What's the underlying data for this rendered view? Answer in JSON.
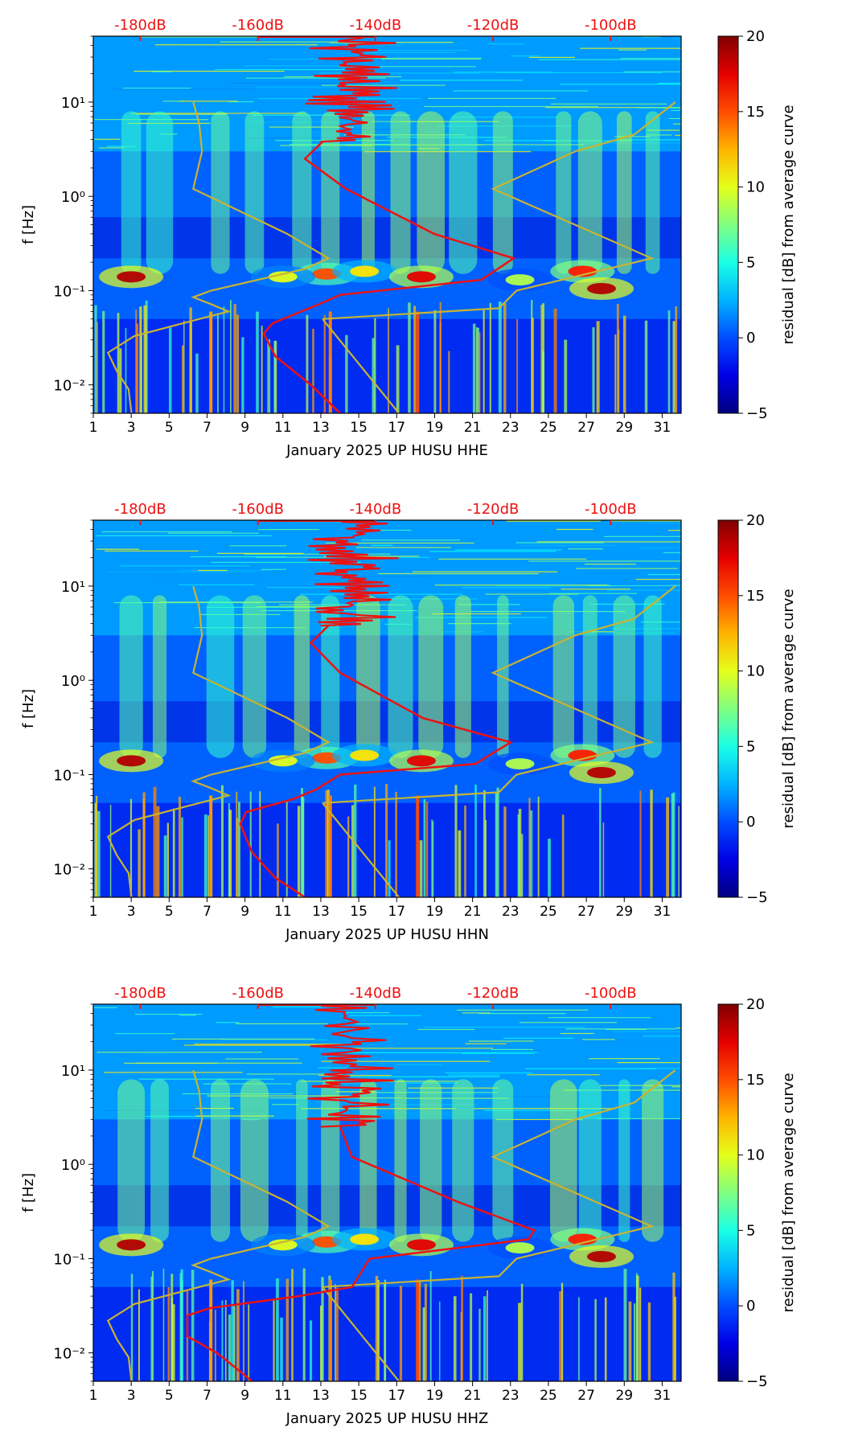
{
  "chart_data": [
    {
      "type": "heatmap",
      "title": "",
      "xlabel": "January 2025 UP HUSU  HHE",
      "ylabel": "f [Hz]",
      "x_ticks": [
        "1",
        "3",
        "5",
        "7",
        "9",
        "11",
        "13",
        "15",
        "17",
        "19",
        "21",
        "23",
        "25",
        "27",
        "29",
        "31"
      ],
      "x_range": [
        1,
        32
      ],
      "y_ticks": [
        "10⁻²",
        "10⁻¹",
        "10⁰",
        "10¹"
      ],
      "y_range_hz": [
        0.005,
        50
      ],
      "top_axis_ticks": [
        "-180dB",
        "-160dB",
        "-140dB",
        "-120dB",
        "-100dB"
      ],
      "top_axis_range_db": [
        -188,
        -88
      ],
      "colorbar": {
        "label": "residual [dB] from average curve",
        "ticks": [
          "20",
          "15",
          "10",
          "5",
          "0",
          "−5"
        ],
        "range": [
          -5,
          20
        ],
        "colormap": "jet"
      },
      "series": [
        {
          "name": "noise model (yellow)",
          "color": "#c8b432",
          "points_db_hz": [
            [
              -181.5,
              0.005
            ],
            [
              -182,
              0.009
            ],
            [
              -184,
              0.014
            ],
            [
              -185.5,
              0.022
            ],
            [
              -181,
              0.033
            ],
            [
              -170,
              0.05
            ],
            [
              -165,
              0.06
            ],
            [
              -168,
              0.072
            ],
            [
              -171,
              0.085
            ],
            [
              -168,
              0.1
            ],
            [
              -152,
              0.17
            ],
            [
              -148,
              0.22
            ],
            [
              -155,
              0.4
            ],
            [
              -171,
              1.2
            ],
            [
              -169.5,
              3
            ],
            [
              -170,
              6
            ],
            [
              -171,
              10
            ]
          ]
        },
        {
          "name": "noise model (yellow, high)",
          "color": "#c8b432",
          "points_db_hz": [
            [
              -149,
              0.05
            ],
            [
              -119,
              0.065
            ],
            [
              -116,
              0.1
            ],
            [
              -93,
              0.22
            ],
            [
              -120,
              1.2
            ],
            [
              -106,
              3
            ],
            [
              -96,
              4.5
            ],
            [
              -89,
              10
            ]
          ]
        },
        {
          "name": "noise model (yellow, slope)",
          "color": "#c8b432",
          "points_db_hz": [
            [
              -149,
              0.05
            ],
            [
              -136,
              0.005
            ]
          ]
        },
        {
          "name": "median PSD (red)",
          "color": "#ee1111",
          "points_db_hz": [
            [
              -146,
              0.005
            ],
            [
              -151,
              0.01
            ],
            [
              -157,
              0.02
            ],
            [
              -159,
              0.035
            ],
            [
              -157.5,
              0.045
            ],
            [
              -150,
              0.07
            ],
            [
              -146,
              0.09
            ],
            [
              -122,
              0.13
            ],
            [
              -116.5,
              0.22
            ],
            [
              -130,
              0.4
            ],
            [
              -145,
              1.2
            ],
            [
              -152,
              2.5
            ],
            [
              -149,
              3.8
            ]
          ]
        }
      ]
    },
    {
      "type": "heatmap",
      "title": "",
      "xlabel": "January 2025 UP HUSU  HHN",
      "ylabel": "f [Hz]",
      "x_ticks": [
        "1",
        "3",
        "5",
        "7",
        "9",
        "11",
        "13",
        "15",
        "17",
        "19",
        "21",
        "23",
        "25",
        "27",
        "29",
        "31"
      ],
      "x_range": [
        1,
        32
      ],
      "y_ticks": [
        "10⁻²",
        "10⁻¹",
        "10⁰",
        "10¹"
      ],
      "y_range_hz": [
        0.005,
        50
      ],
      "top_axis_ticks": [
        "-180dB",
        "-160dB",
        "-140dB",
        "-120dB",
        "-100dB"
      ],
      "top_axis_range_db": [
        -188,
        -88
      ],
      "colorbar": {
        "label": "residual [dB] from average curve",
        "ticks": [
          "20",
          "15",
          "10",
          "5",
          "0",
          "−5"
        ],
        "range": [
          -5,
          20
        ],
        "colormap": "jet"
      },
      "series": [
        {
          "name": "noise model (yellow)",
          "color": "#c8b432",
          "points_db_hz": [
            [
              -181.5,
              0.005
            ],
            [
              -182,
              0.009
            ],
            [
              -184,
              0.014
            ],
            [
              -185.5,
              0.022
            ],
            [
              -181,
              0.033
            ],
            [
              -170,
              0.05
            ],
            [
              -165,
              0.06
            ],
            [
              -168,
              0.072
            ],
            [
              -171,
              0.085
            ],
            [
              -168,
              0.1
            ],
            [
              -152,
              0.17
            ],
            [
              -148,
              0.22
            ],
            [
              -155,
              0.4
            ],
            [
              -171,
              1.2
            ],
            [
              -169.5,
              3
            ],
            [
              -170,
              6
            ],
            [
              -171,
              10
            ]
          ]
        },
        {
          "name": "noise model (yellow, high)",
          "color": "#c8b432",
          "points_db_hz": [
            [
              -149,
              0.05
            ],
            [
              -119,
              0.065
            ],
            [
              -116,
              0.1
            ],
            [
              -93,
              0.22
            ],
            [
              -120,
              1.2
            ],
            [
              -106,
              3
            ],
            [
              -96,
              4.5
            ],
            [
              -89,
              10
            ]
          ]
        },
        {
          "name": "noise model (yellow, slope)",
          "color": "#c8b432",
          "points_db_hz": [
            [
              -149,
              0.05
            ],
            [
              -136,
              0.005
            ]
          ]
        },
        {
          "name": "median PSD (red)",
          "color": "#ee1111",
          "points_db_hz": [
            [
              -152,
              0.005
            ],
            [
              -157,
              0.008
            ],
            [
              -161,
              0.015
            ],
            [
              -163,
              0.03
            ],
            [
              -162,
              0.04
            ],
            [
              -154,
              0.055
            ],
            [
              -150,
              0.07
            ],
            [
              -146,
              0.1
            ],
            [
              -123,
              0.13
            ],
            [
              -117,
              0.22
            ],
            [
              -132,
              0.4
            ],
            [
              -146,
              1.2
            ],
            [
              -151,
              2.5
            ],
            [
              -148,
              3.8
            ]
          ]
        }
      ]
    },
    {
      "type": "heatmap",
      "title": "",
      "xlabel": "January 2025 UP HUSU  HHZ",
      "ylabel": "f [Hz]",
      "x_ticks": [
        "1",
        "3",
        "5",
        "7",
        "9",
        "11",
        "13",
        "15",
        "17",
        "19",
        "21",
        "23",
        "25",
        "27",
        "29",
        "31"
      ],
      "x_range": [
        1,
        32
      ],
      "y_ticks": [
        "10⁻²",
        "10⁻¹",
        "10⁰",
        "10¹"
      ],
      "y_range_hz": [
        0.005,
        50
      ],
      "top_axis_ticks": [
        "-180dB",
        "-160dB",
        "-140dB",
        "-120dB",
        "-100dB"
      ],
      "top_axis_range_db": [
        -188,
        -88
      ],
      "colorbar": {
        "label": "residual [dB] from average curve",
        "ticks": [
          "20",
          "15",
          "10",
          "5",
          "0",
          "−5"
        ],
        "range": [
          -5,
          20
        ],
        "colormap": "jet"
      },
      "series": [
        {
          "name": "noise model (yellow)",
          "color": "#c8b432",
          "points_db_hz": [
            [
              -181.5,
              0.005
            ],
            [
              -182,
              0.009
            ],
            [
              -184,
              0.014
            ],
            [
              -185.5,
              0.022
            ],
            [
              -181,
              0.033
            ],
            [
              -170,
              0.05
            ],
            [
              -165,
              0.06
            ],
            [
              -168,
              0.072
            ],
            [
              -171,
              0.085
            ],
            [
              -168,
              0.1
            ],
            [
              -152,
              0.17
            ],
            [
              -148,
              0.22
            ],
            [
              -155,
              0.4
            ],
            [
              -171,
              1.2
            ],
            [
              -169.5,
              3
            ],
            [
              -170,
              6
            ],
            [
              -171,
              10
            ]
          ]
        },
        {
          "name": "noise model (yellow, high)",
          "color": "#c8b432",
          "points_db_hz": [
            [
              -149,
              0.05
            ],
            [
              -119,
              0.065
            ],
            [
              -116,
              0.1
            ],
            [
              -93,
              0.22
            ],
            [
              -120,
              1.2
            ],
            [
              -106,
              3
            ],
            [
              -96,
              4.5
            ],
            [
              -89,
              10
            ]
          ]
        },
        {
          "name": "noise model (yellow, slope)",
          "color": "#c8b432",
          "points_db_hz": [
            [
              -149,
              0.05
            ],
            [
              -136,
              0.005
            ]
          ]
        },
        {
          "name": "median PSD (red)",
          "color": "#ee1111",
          "points_db_hz": [
            [
              -161,
              0.005
            ],
            [
              -165,
              0.008
            ],
            [
              -167,
              0.01
            ],
            [
              -172,
              0.015
            ],
            [
              -172,
              0.025
            ],
            [
              -168,
              0.03
            ],
            [
              -153,
              0.04
            ],
            [
              -144,
              0.05
            ],
            [
              -141,
              0.1
            ],
            [
              -114,
              0.16
            ],
            [
              -113,
              0.2
            ],
            [
              -126,
              0.4
            ],
            [
              -144,
              1.2
            ],
            [
              -146,
              2.5
            ]
          ]
        }
      ]
    }
  ]
}
